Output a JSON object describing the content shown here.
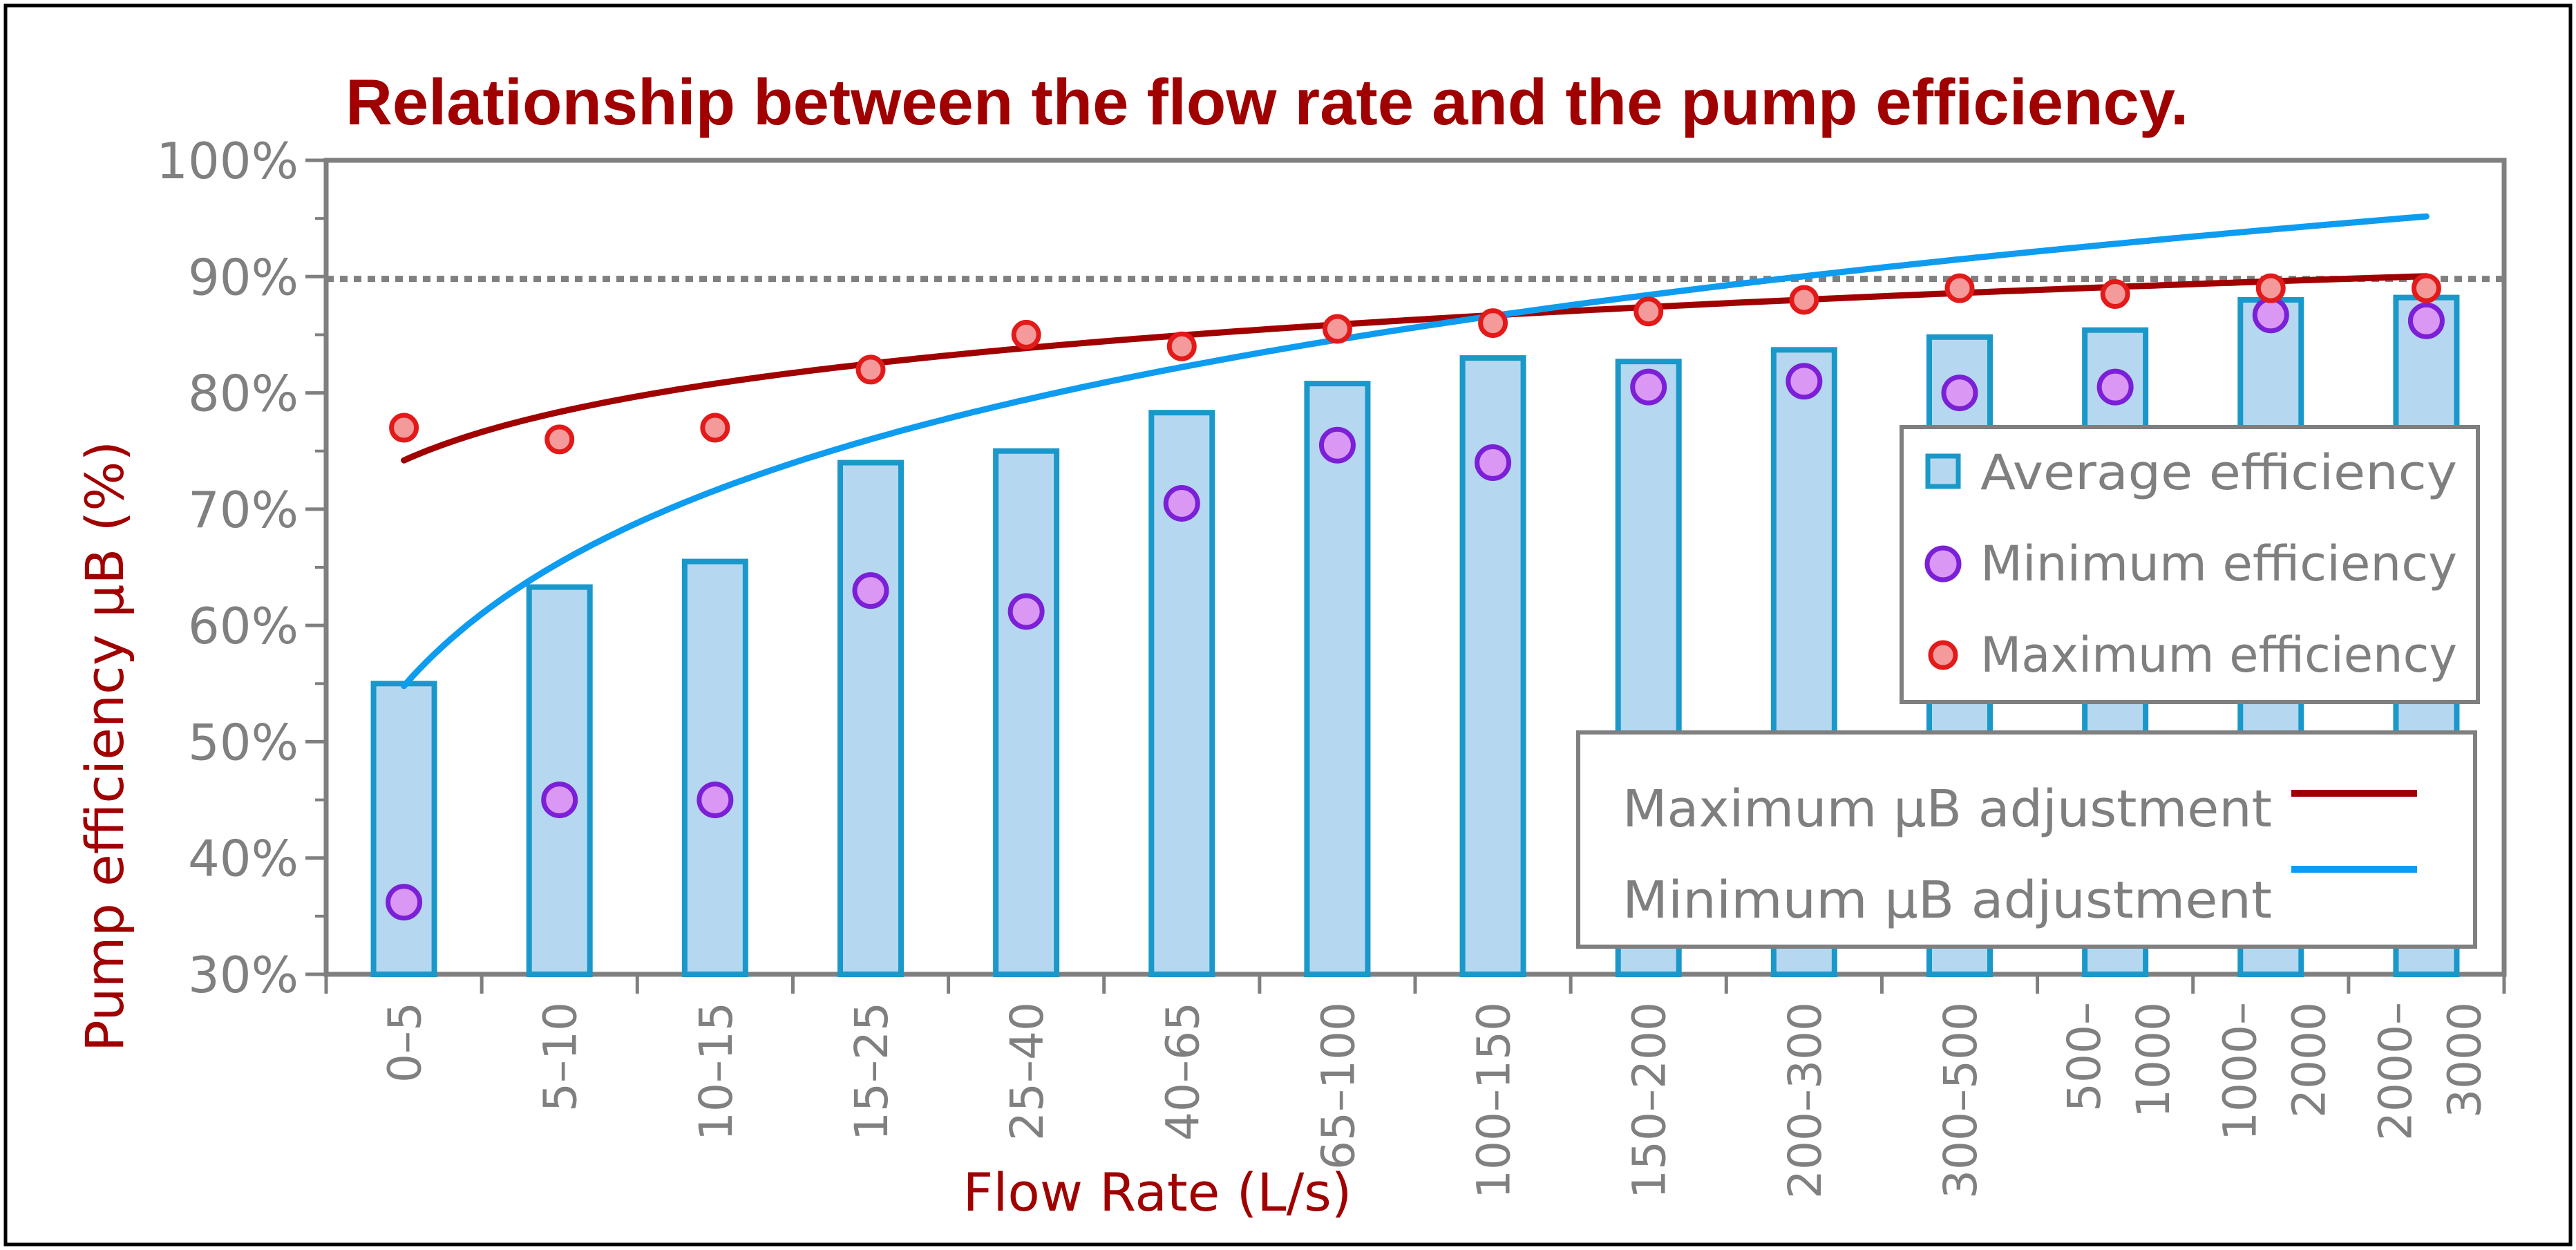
{
  "chart_data": {
    "type": "bar",
    "title": "Relationship between the flow rate and the pump efficiency.",
    "xlabel": "Flow Rate (L/s)",
    "ylabel": "Pump efficiency μB (%)",
    "ylim": [
      30,
      100
    ],
    "yticks": [
      "30%",
      "40%",
      "50%",
      "60%",
      "70%",
      "80%",
      "90%",
      "100%"
    ],
    "categories": [
      [
        "0–5"
      ],
      [
        "5–10"
      ],
      [
        "10–15"
      ],
      [
        "15–25"
      ],
      [
        "25–40"
      ],
      [
        "40–65"
      ],
      [
        "65–100"
      ],
      [
        "100–150"
      ],
      [
        "150–200"
      ],
      [
        "200–300"
      ],
      [
        "300–500"
      ],
      [
        "500–",
        "1000"
      ],
      [
        "1000–",
        "2000"
      ],
      [
        "2000–",
        "3000"
      ]
    ],
    "series": [
      {
        "name": "Average efficiency",
        "kind": "bar",
        "values": [
          55,
          63.3,
          65.5,
          74,
          75,
          78.3,
          80.8,
          83,
          82.7,
          83.7,
          84.8,
          85.4,
          88,
          88.2
        ]
      },
      {
        "name": "Minimum efficiency",
        "kind": "scatter",
        "values": [
          36.2,
          45,
          45,
          63,
          61.2,
          70.5,
          75.5,
          74,
          80.5,
          81,
          80,
          80.5,
          86.7,
          86.2
        ]
      },
      {
        "name": "Maximum efficiency",
        "kind": "scatter",
        "values": [
          77,
          76,
          77,
          82,
          85,
          84,
          85.5,
          86,
          87,
          88,
          89,
          88.5,
          89,
          89
        ]
      }
    ],
    "trend_lines": [
      {
        "name": "Maximum μB adjustment",
        "color": "#a00000",
        "a": 74.2,
        "b": 6.0
      },
      {
        "name": "Minimum μB adjustment",
        "color": "#0d9cf0",
        "a": 54.8,
        "b": 15.3
      }
    ],
    "reference_line": {
      "value": 89.8,
      "style": "dotted"
    },
    "legend_position": "right-middle",
    "colors": {
      "title": "#a00000",
      "axis_title": "#a00000",
      "tick_text": "#808080",
      "bar_fill": "#b5d8f0",
      "bar_stroke": "#1a98c9",
      "min_fill": "#da98f4",
      "min_stroke": "#7b20d6",
      "max_fill": "#f59a9a",
      "max_stroke": "#e31a1a",
      "frame": "#7f7f7f",
      "legend_text": "#7f7f7f"
    }
  }
}
